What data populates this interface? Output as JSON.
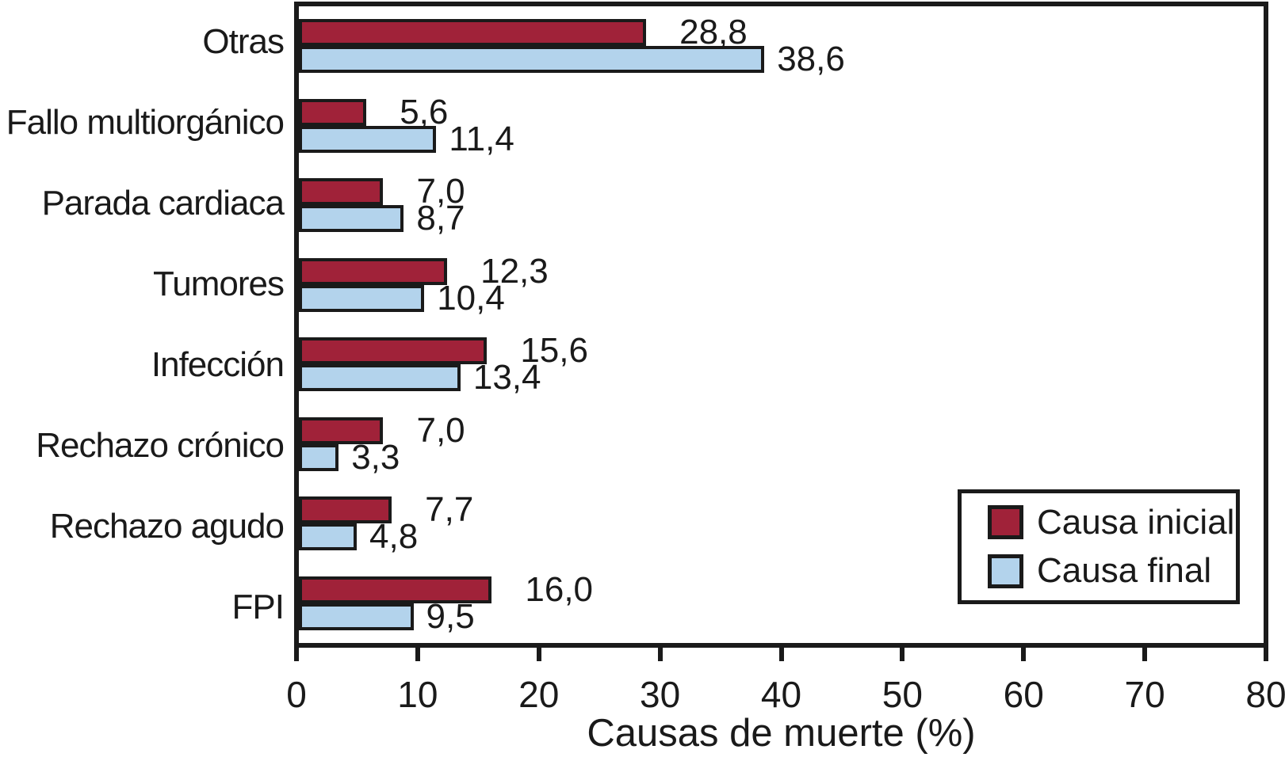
{
  "chart_data": {
    "type": "bar",
    "orientation": "horizontal",
    "xlabel": "Causas de muerte (%)",
    "xlim": [
      0,
      80
    ],
    "xticks": [
      "0",
      "10",
      "20",
      "30",
      "40",
      "50",
      "60",
      "70",
      "80"
    ],
    "grid": false,
    "legend_position": "bottom-right",
    "categories": [
      "Otras",
      "Fallo multiorgánico",
      "Parada cardiaca",
      "Tumores",
      "Infección",
      "Rechazo crónico",
      "Rechazo agudo",
      "FPI"
    ],
    "series": [
      {
        "name": "Causa inicial",
        "color": "#A02239",
        "values": [
          28.8,
          5.6,
          7.0,
          12.3,
          15.6,
          7.0,
          7.7,
          16.0
        ],
        "labels": [
          "28,8",
          "5,6",
          "7,0",
          "12,3",
          "15,6",
          "7,0",
          "7,7",
          "16,0"
        ]
      },
      {
        "name": "Causa final",
        "color": "#B3D3EC",
        "values": [
          38.6,
          11.4,
          8.7,
          10.4,
          13.4,
          3.3,
          4.8,
          9.5
        ],
        "labels": [
          "38,6",
          "11,4",
          "8,7",
          "10,4",
          "13,4",
          "3,3",
          "4,8",
          "9,5"
        ]
      }
    ],
    "colors": {
      "axis": "#1a1a1a",
      "text": "#1a1a1a",
      "background": "#ffffff"
    }
  }
}
